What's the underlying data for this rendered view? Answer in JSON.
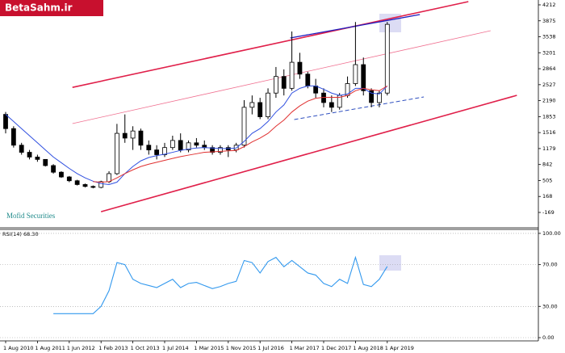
{
  "chart_data": {
    "type": "candlestick",
    "logo": "BetaSahm.ir",
    "watermark": "Mofid Securities",
    "categories": [
      "1 Aug 2010",
      null,
      null,
      null,
      "1 Aug 2011",
      null,
      null,
      null,
      "1 Jun 2012",
      null,
      null,
      null,
      "1 Feb 2013",
      null,
      null,
      null,
      "1 Oct 2013",
      null,
      null,
      null,
      "1 Jul 2014",
      null,
      null,
      null,
      "1 Mar 2015",
      null,
      null,
      null,
      "1 Nov 2015",
      null,
      null,
      null,
      "1 Jul 2016",
      null,
      null,
      null,
      "1 Mar 2017",
      null,
      null,
      null,
      "1 Dec 2017",
      null,
      null,
      null,
      "1 Aug 2018",
      null,
      null,
      null,
      "1 Apr 2019"
    ],
    "open": [
      1900,
      1600,
      1250,
      1100,
      1000,
      950,
      820,
      680,
      580,
      500,
      420,
      380,
      360,
      480,
      650,
      1500,
      1400,
      1550,
      1250,
      1150,
      1050,
      1200,
      1350,
      1150,
      1300,
      1250,
      1200,
      1100,
      1200,
      1150,
      1250,
      2050,
      2150,
      1850,
      2350,
      2700,
      2450,
      3000,
      2750,
      2500,
      2350,
      2150,
      2050,
      2300,
      2550,
      2950,
      2400,
      2150,
      2350
    ],
    "high": [
      1950,
      1650,
      1300,
      1150,
      1050,
      950,
      850,
      700,
      600,
      520,
      440,
      400,
      500,
      700,
      1700,
      1900,
      1650,
      1600,
      1350,
      1250,
      1300,
      1450,
      1500,
      1350,
      1400,
      1350,
      1250,
      1250,
      1250,
      1300,
      2200,
      2300,
      2250,
      2450,
      2900,
      2850,
      3650,
      3200,
      2800,
      2650,
      2450,
      2300,
      2350,
      2700,
      3850,
      3100,
      2450,
      2400,
      3850
    ],
    "low": [
      1500,
      1200,
      1050,
      950,
      900,
      800,
      650,
      560,
      470,
      400,
      360,
      340,
      340,
      450,
      620,
      1300,
      1150,
      1150,
      1050,
      950,
      1000,
      1150,
      1100,
      1100,
      1200,
      1150,
      1050,
      1050,
      1000,
      1100,
      1200,
      1900,
      1800,
      1800,
      2250,
      2300,
      2400,
      2650,
      2450,
      2250,
      2050,
      1950,
      2000,
      2250,
      2500,
      2300,
      2050,
      2050,
      2300
    ],
    "close": [
      1600,
      1250,
      1100,
      1000,
      950,
      820,
      680,
      580,
      500,
      420,
      380,
      360,
      480,
      650,
      1500,
      1400,
      1550,
      1250,
      1150,
      1050,
      1200,
      1350,
      1150,
      1300,
      1250,
      1200,
      1100,
      1200,
      1150,
      1250,
      2050,
      2150,
      1850,
      2350,
      2700,
      2450,
      3000,
      2750,
      2500,
      2350,
      2150,
      2050,
      2300,
      2550,
      2950,
      2400,
      2150,
      2350,
      3800
    ],
    "up_color": "#ffffff",
    "down_color": "#000000",
    "ylim": [
      -493,
      4314
    ],
    "yticks": [
      4212,
      3875,
      3538,
      3201,
      2864,
      2527,
      2190,
      1853,
      1516,
      1179,
      842,
      505,
      168,
      -169
    ],
    "overlays": [
      {
        "color": "#3050e0",
        "values": [
          1900,
          1750,
          1600,
          1450,
          1300,
          1150,
          1000,
          880,
          760,
          650,
          560,
          490,
          440,
          420,
          470,
          650,
          800,
          920,
          990,
          1030,
          1060,
          1100,
          1140,
          1170,
          1190,
          1200,
          1190,
          1180,
          1180,
          1190,
          1330,
          1500,
          1600,
          1750,
          1950,
          2100,
          2350,
          2450,
          2500,
          2500,
          2430,
          2350,
          2300,
          2330,
          2450,
          2450,
          2350,
          2330,
          2500
        ]
      },
      {
        "color": "#e03030",
        "values": [
          null,
          null,
          null,
          null,
          null,
          null,
          null,
          null,
          null,
          null,
          null,
          480,
          470,
          480,
          560,
          650,
          730,
          800,
          850,
          890,
          930,
          970,
          1010,
          1040,
          1070,
          1100,
          1110,
          1120,
          1130,
          1140,
          1220,
          1320,
          1400,
          1500,
          1650,
          1780,
          1950,
          2080,
          2180,
          2240,
          2260,
          2260,
          2260,
          2300,
          2400,
          2450,
          2420,
          2400,
          2500
        ]
      }
    ],
    "trendlines": [
      {
        "color": "#e0204a",
        "width": 1.6,
        "dashed": false,
        "x": [
          8.4,
          58.2
        ],
        "values": [
          2470,
          4280
        ]
      },
      {
        "color": "#e0204a",
        "width": 1.6,
        "dashed": false,
        "x": [
          12.0,
          64.3
        ],
        "values": [
          -153,
          2302
        ]
      },
      {
        "color": "#f07090",
        "width": 0.8,
        "dashed": false,
        "x": [
          8.4,
          61.0
        ],
        "values": [
          1706,
          3666
        ]
      },
      {
        "color": "#2020c0",
        "width": 1.3,
        "dashed": false,
        "x": [
          35.8,
          52.1
        ],
        "values": [
          3513,
          4007
        ]
      },
      {
        "color": "#3050c0",
        "width": 1,
        "dashed": true,
        "x": [
          36.3,
          52.6
        ],
        "values": [
          1791,
          2268
        ]
      }
    ],
    "indicator": {
      "label": "RSI(14) 68.30",
      "color": "#3399ee",
      "values": [
        null,
        null,
        null,
        null,
        null,
        null,
        23,
        23,
        23,
        23,
        23,
        23,
        30,
        45,
        72,
        70,
        56,
        52,
        50,
        48,
        52,
        56,
        48,
        52,
        53,
        50,
        47,
        49,
        52,
        54,
        74,
        72,
        62,
        73,
        77,
        68,
        74,
        68,
        62,
        60,
        52,
        49,
        56,
        52,
        77,
        51,
        49,
        56,
        68.3
      ],
      "ylim": [
        -3.1,
        103.8
      ],
      "yticks": [
        {
          "value": 100,
          "label": "100.00"
        },
        {
          "value": 70,
          "label": "70.00"
        },
        {
          "value": 30,
          "label": "30.00"
        },
        {
          "value": 0,
          "label": "0.00"
        }
      ]
    }
  }
}
